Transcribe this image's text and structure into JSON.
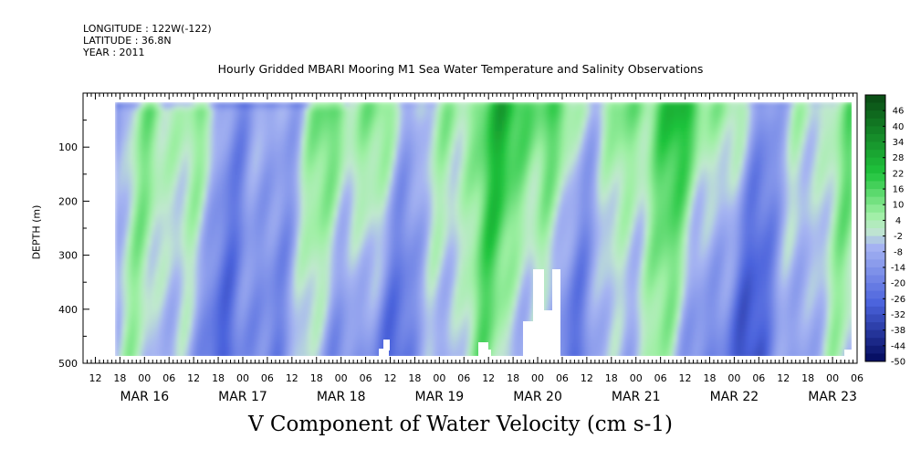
{
  "header": {
    "longitude": "LONGITUDE : 122W(-122)",
    "latitude": "LATITUDE : 36.8N",
    "year": "YEAR : 2011"
  },
  "chart_data": {
    "type": "heatmap",
    "title": "Hourly Gridded MBARI Mooring M1 Sea Water Temperature and Salinity Observations",
    "xlabel": "V Component of Water Velocity (cm s-1)",
    "ylabel": "DEPTH (m)",
    "x_range_hours_from_mar16_00": [
      -15,
      174
    ],
    "y_ticks": [
      "100",
      "200",
      "300",
      "400",
      "500"
    ],
    "y_tick_values": [
      100,
      200,
      300,
      400,
      500
    ],
    "ylim": [
      500,
      0
    ],
    "hour_ticks": [
      "12",
      "18",
      "00",
      "06",
      "12",
      "18",
      "00",
      "06",
      "12",
      "18",
      "00",
      "06",
      "12",
      "18",
      "00",
      "06",
      "12",
      "18",
      "00",
      "06",
      "12",
      "18",
      "00",
      "06",
      "12",
      "18",
      "00",
      "06",
      "12",
      "18",
      "00",
      "06"
    ],
    "day_labels": [
      "MAR 16",
      "MAR 17",
      "MAR 18",
      "MAR 19",
      "MAR 20",
      "MAR 21",
      "MAR 22",
      "MAR 23"
    ],
    "colorbar": {
      "levels": [
        "46",
        "40",
        "34",
        "28",
        "22",
        "16",
        "10",
        "4",
        "-2",
        "-8",
        "-14",
        "-20",
        "-26",
        "-32",
        "-38",
        "-44",
        "-50"
      ],
      "range": [
        -50,
        52
      ]
    },
    "colors": {
      "dark_green": "#0a4a14",
      "mid_green": "#1fc43c",
      "light_green": "#9ff0a4",
      "light_blue": "#a6b4f2",
      "mid_blue": "#4a62dc",
      "dark_navy": "#020a5c"
    }
  }
}
